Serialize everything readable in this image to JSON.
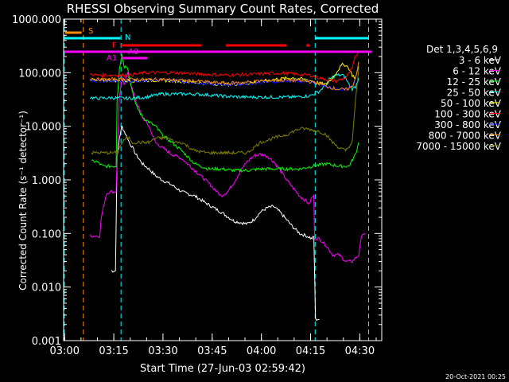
{
  "chart_data": {
    "type": "line",
    "title": "RHESSI Observing Summary Count Rates, Corrected",
    "xlabel": "Start Time (27-Jun-03 02:59:42)",
    "ylabel": "Corrected Count Rate (s⁻¹ detector⁻¹)",
    "yscale": "log",
    "xlim": [
      0,
      97
    ],
    "ylim": [
      0.001,
      1000
    ],
    "x_ticks": [
      {
        "v": 0.3,
        "label": "03:00"
      },
      {
        "v": 15.3,
        "label": "03:15"
      },
      {
        "v": 30.3,
        "label": "03:30"
      },
      {
        "v": 45.3,
        "label": "03:45"
      },
      {
        "v": 60.3,
        "label": "04:00"
      },
      {
        "v": 75.3,
        "label": "04:15"
      },
      {
        "v": 90.3,
        "label": "04:30"
      }
    ],
    "y_ticks": [
      {
        "v": 0.001,
        "label": "0.001"
      },
      {
        "v": 0.01,
        "label": "0.010"
      },
      {
        "v": 0.1,
        "label": "0.100"
      },
      {
        "v": 1,
        "label": "1.000"
      },
      {
        "v": 10,
        "label": "10.000"
      },
      {
        "v": 100,
        "label": "100.000"
      },
      {
        "v": 1000,
        "label": "1000.000"
      }
    ],
    "legend_title": "Det 1,3,4,5,6,9",
    "series": [
      {
        "name": "3 - 6 keV",
        "color": "#ffffff",
        "x": [
          14.5,
          15,
          15.8,
          16.3,
          17,
          17.8,
          18.5,
          19.5,
          20,
          21,
          22,
          24,
          26,
          28,
          30,
          33,
          36,
          40,
          44,
          48,
          52,
          56,
          58,
          60,
          62,
          64,
          66,
          68,
          70,
          72,
          74,
          75,
          75.5,
          76.3,
          76.8,
          78
        ],
        "y": [
          0.02,
          0.02,
          0.02,
          2.5,
          6,
          10,
          8,
          6,
          5,
          4,
          3,
          2,
          1.6,
          1.2,
          1,
          0.8,
          0.6,
          0.5,
          0.35,
          0.25,
          0.17,
          0.15,
          0.18,
          0.25,
          0.3,
          0.32,
          0.25,
          0.18,
          0.13,
          0.1,
          0.09,
          0.085,
          0.08,
          0.085,
          0.0025,
          0.0025
        ]
      },
      {
        "name": "6 - 12 keV",
        "color": "#ff00ff",
        "x": [
          8,
          10,
          11,
          11.5,
          13,
          14,
          15,
          16,
          16.3,
          17,
          17.8,
          18.5,
          19.5,
          20.5,
          22,
          24,
          26,
          28,
          30,
          33,
          36,
          40,
          44,
          48,
          50,
          52,
          54,
          56,
          58,
          60,
          62,
          64,
          66,
          68,
          70,
          72,
          74,
          75,
          75.5,
          76.3,
          76.5,
          78,
          80,
          82,
          84,
          86,
          88,
          90,
          91,
          92
        ],
        "y": [
          0.09,
          0.09,
          0.09,
          0.2,
          0.55,
          0.6,
          0.6,
          0.6,
          2.5,
          35,
          80,
          60,
          100,
          60,
          30,
          15,
          10,
          5,
          4,
          3,
          2.5,
          1.5,
          0.9,
          0.5,
          0.6,
          0.9,
          1.5,
          2.2,
          2.8,
          3,
          2.8,
          2.2,
          1.5,
          1,
          0.7,
          0.5,
          0.4,
          0.35,
          0.45,
          0.5,
          0.08,
          0.08,
          0.06,
          0.04,
          0.04,
          0.03,
          0.03,
          0.04,
          0.1,
          0.1
        ]
      },
      {
        "name": "12 - 25 keV",
        "color": "#00ff00",
        "x": [
          8.5,
          10,
          12,
          14,
          15,
          16,
          16.3,
          17,
          17.8,
          18.5,
          19.5,
          20.5,
          22,
          24,
          26,
          28,
          30,
          33,
          36,
          40,
          44,
          48,
          52,
          56,
          60,
          64,
          68,
          72,
          76,
          80,
          84,
          87,
          89,
          90
        ],
        "y": [
          2.2,
          2.2,
          1.8,
          1.8,
          1.8,
          1.8,
          30,
          120,
          220,
          130,
          130,
          60,
          25,
          15,
          12,
          10,
          7,
          5,
          3.5,
          2,
          1.6,
          1.6,
          1.5,
          1.5,
          1.6,
          1.6,
          1.6,
          1.6,
          1.8,
          2,
          1.8,
          1.8,
          3,
          5
        ]
      },
      {
        "name": "25 - 50 keV",
        "color": "#00ffff",
        "x": [
          8,
          10,
          15,
          20,
          25,
          30,
          35,
          40,
          45,
          50,
          55,
          60,
          65,
          70,
          75,
          78,
          80,
          81,
          83,
          85,
          86,
          87,
          88,
          89,
          90
        ],
        "y": [
          35,
          33,
          34,
          33,
          35,
          40,
          40,
          40,
          38,
          36,
          35,
          35,
          35,
          35,
          37,
          45,
          60,
          75,
          90,
          90,
          80,
          60,
          50,
          55,
          80
        ]
      },
      {
        "name": "50 - 100 keV",
        "color": "#ffff00",
        "x": [
          8,
          10,
          15,
          20,
          25,
          30,
          35,
          40,
          45,
          50,
          55,
          60,
          65,
          70,
          75,
          78,
          80,
          82,
          84,
          85,
          86,
          87,
          88,
          89,
          90
        ],
        "y": [
          75,
          70,
          72,
          70,
          72,
          72,
          70,
          66,
          62,
          60,
          62,
          68,
          76,
          80,
          72,
          64,
          60,
          80,
          120,
          140,
          140,
          120,
          90,
          80,
          130
        ]
      },
      {
        "name": "100 - 300 keV",
        "color": "#ff0000",
        "x": [
          8,
          10,
          15,
          20,
          25,
          30,
          35,
          40,
          45,
          50,
          55,
          60,
          65,
          70,
          75,
          78,
          80,
          83,
          86,
          88,
          89,
          90
        ],
        "y": [
          95,
          90,
          90,
          90,
          100,
          100,
          100,
          95,
          92,
          90,
          92,
          95,
          98,
          95,
          90,
          80,
          75,
          70,
          80,
          120,
          200,
          250
        ]
      },
      {
        "name": "300 - 800 keV",
        "color": "#0000ff",
        "x": [
          8,
          10,
          15,
          20,
          25,
          30,
          35,
          40,
          45,
          50,
          55,
          60,
          65,
          70,
          75,
          78,
          80,
          83,
          86,
          88,
          89,
          90
        ],
        "y": [
          75,
          70,
          70,
          70,
          72,
          72,
          70,
          66,
          62,
          60,
          62,
          66,
          68,
          70,
          66,
          60,
          55,
          50,
          48,
          55,
          80,
          160
        ]
      },
      {
        "name": "800 - 7000 keV",
        "color": "#ff8c00",
        "x": [
          8,
          10,
          15,
          20,
          25,
          30,
          35,
          40,
          45,
          50,
          55,
          60,
          65,
          70,
          75,
          78,
          80,
          83,
          86,
          88,
          89,
          90
        ],
        "y": [
          80,
          75,
          75,
          75,
          75,
          75,
          72,
          70,
          66,
          64,
          66,
          70,
          72,
          72,
          68,
          62,
          56,
          50,
          48,
          55,
          80,
          160
        ]
      },
      {
        "name": "7000 - 15000 keV",
        "color": "#808000",
        "x": [
          8.5,
          10,
          12,
          14,
          16,
          17,
          18,
          19,
          20,
          21,
          22,
          24,
          26,
          28,
          30,
          32,
          34,
          36,
          40,
          44,
          48,
          52,
          56,
          60,
          64,
          68,
          70,
          72,
          74,
          76,
          78,
          80,
          82,
          84,
          86,
          88,
          89,
          90
        ],
        "y": [
          3.2,
          3.2,
          3.2,
          3.2,
          3.2,
          4,
          5,
          6,
          6,
          5,
          5,
          5,
          5,
          6,
          6,
          6,
          5,
          5,
          3.5,
          3.2,
          3.2,
          3.2,
          3.2,
          5,
          6,
          7,
          8,
          9,
          9,
          8.5,
          8,
          7,
          5,
          4,
          3.5,
          5,
          30,
          120
        ]
      }
    ],
    "vertical_lines": [
      {
        "x": 0.2,
        "color": "#00ffff"
      },
      {
        "x": 6,
        "color": "#ff8c00"
      },
      {
        "x": 17.5,
        "color": "#00ffff"
      },
      {
        "x": 76.7,
        "color": "#00ffff"
      },
      {
        "x": 93,
        "color": "#00ffff"
      }
    ],
    "flag_bars": [
      {
        "label": "S",
        "color": "#ff8c00",
        "y": 41,
        "segments": [
          [
            0.5,
            5.5
          ]
        ]
      },
      {
        "label": "N",
        "color": "#00ffff",
        "y": 48,
        "segments": [
          [
            0.2,
            17.3
          ],
          [
            76.8,
            93
          ]
        ]
      },
      {
        "label": "F",
        "color": "#ff0000",
        "y": 57,
        "segments": [
          [
            17.5,
            42
          ],
          [
            49.5,
            68
          ],
          [
            74,
            75
          ]
        ]
      },
      {
        "label": "",
        "color": "#ff00ff",
        "y": 65,
        "segments": [
          [
            0.2,
            94
          ]
        ]
      },
      {
        "label": "A0",
        "color": "#ff00ff",
        "y": 65,
        "segments": []
      },
      {
        "label": "A1",
        "color": "#ff00ff",
        "y": 73,
        "segments": [
          [
            17.6,
            25.5
          ]
        ]
      }
    ]
  },
  "footer": {
    "timestamp": "20-Oct-2021 00:25"
  }
}
